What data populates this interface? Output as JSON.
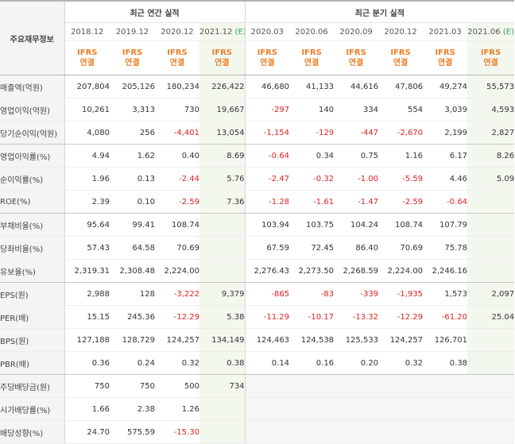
{
  "header": {
    "row_label": "주요재무정보",
    "annual_title": "최근 연간 실적",
    "quarter_title": "최근 분기 실적"
  },
  "periods": [
    {
      "label": "2018.12",
      "est": "",
      "ifrs_a": "IFRS",
      "ifrs_b": "연결"
    },
    {
      "label": "2019.12",
      "est": "",
      "ifrs_a": "IFRS",
      "ifrs_b": "연결"
    },
    {
      "label": "2020.12",
      "est": "",
      "ifrs_a": "IFRS",
      "ifrs_b": "연결"
    },
    {
      "label": "2021.12",
      "est": "(E)",
      "ifrs_a": "IFRS",
      "ifrs_b": "연결"
    },
    {
      "label": "2020.03",
      "est": "",
      "ifrs_a": "IFRS",
      "ifrs_b": "연결"
    },
    {
      "label": "2020.06",
      "est": "",
      "ifrs_a": "IFRS",
      "ifrs_b": "연결"
    },
    {
      "label": "2020.09",
      "est": "",
      "ifrs_a": "IFRS",
      "ifrs_b": "연결"
    },
    {
      "label": "2020.12",
      "est": "",
      "ifrs_a": "IFRS",
      "ifrs_b": "연결"
    },
    {
      "label": "2021.03",
      "est": "",
      "ifrs_a": "IFRS",
      "ifrs_b": "연결"
    },
    {
      "label": "2021.06",
      "est": "(E)",
      "ifrs_a": "IFRS",
      "ifrs_b": "연결"
    }
  ],
  "rows": [
    {
      "label": "매출액(억원)",
      "values": [
        "207,804",
        "205,126",
        "180,234",
        "226,422",
        "46,680",
        "41,133",
        "44,616",
        "47,806",
        "49,274",
        "55,573"
      ]
    },
    {
      "label": "영업이익(억원)",
      "values": [
        "10,261",
        "3,313",
        "730",
        "19,667",
        "-297",
        "140",
        "334",
        "554",
        "3,039",
        "4,593"
      ]
    },
    {
      "label": "당기순이익(억원)",
      "values": [
        "4,080",
        "256",
        "-4,401",
        "13,054",
        "-1,154",
        "-129",
        "-447",
        "-2,670",
        "2,199",
        "2,827"
      ]
    },
    {
      "label": "영업이익률(%)",
      "values": [
        "4.94",
        "1.62",
        "0.40",
        "8.69",
        "-0.64",
        "0.34",
        "0.75",
        "1.16",
        "6.17",
        "8.26"
      ]
    },
    {
      "label": "순이익률(%)",
      "values": [
        "1.96",
        "0.13",
        "-2.44",
        "5.76",
        "-2.47",
        "-0.32",
        "-1.00",
        "-5.59",
        "4.46",
        "5.09"
      ]
    },
    {
      "label": "ROE(%)",
      "values": [
        "2.39",
        "0.10",
        "-2.59",
        "7.36",
        "-1.28",
        "-1.61",
        "-1.47",
        "-2.59",
        "-0.64",
        ""
      ]
    },
    {
      "label": "부채비율(%)",
      "values": [
        "95.64",
        "99.41",
        "108.74",
        "",
        "103.94",
        "103.75",
        "104.24",
        "108.74",
        "107.79",
        ""
      ]
    },
    {
      "label": "당좌비율(%)",
      "values": [
        "57.43",
        "64.58",
        "70.69",
        "",
        "67.59",
        "72.45",
        "86.40",
        "70.69",
        "75.78",
        ""
      ]
    },
    {
      "label": "유보율(%)",
      "values": [
        "2,319.31",
        "2,308.48",
        "2,224.00",
        "",
        "2,276.43",
        "2,273.50",
        "2,268.59",
        "2,224.00",
        "2,246.16",
        ""
      ]
    },
    {
      "label": "EPS(원)",
      "values": [
        "2,988",
        "128",
        "-3,222",
        "9,379",
        "-865",
        "-83",
        "-339",
        "-1,935",
        "1,573",
        "2,097"
      ]
    },
    {
      "label": "PER(배)",
      "values": [
        "15.15",
        "245.36",
        "-12.29",
        "5.38",
        "-11.29",
        "-10.17",
        "-13.32",
        "-12.29",
        "-61.20",
        "25.04"
      ]
    },
    {
      "label": "BPS(원)",
      "values": [
        "127,188",
        "128,729",
        "124,257",
        "134,149",
        "124,463",
        "124,538",
        "125,533",
        "124,257",
        "126,701",
        ""
      ]
    },
    {
      "label": "PBR(배)",
      "values": [
        "0.36",
        "0.24",
        "0.32",
        "0.38",
        "0.14",
        "0.16",
        "0.20",
        "0.32",
        "0.38",
        ""
      ]
    },
    {
      "label": "주당배당금(원)",
      "values": [
        "750",
        "750",
        "500",
        "734",
        "",
        "",
        "",
        "",
        "",
        ""
      ]
    },
    {
      "label": "시가배당률(%)",
      "values": [
        "1.66",
        "2.38",
        "1.26",
        "",
        "",
        "",
        "",
        "",
        "",
        ""
      ]
    },
    {
      "label": "배당성향(%)",
      "values": [
        "24.70",
        "575.59",
        "-15.30",
        "",
        "",
        "",
        "",
        "",
        "",
        ""
      ]
    }
  ],
  "colors": {
    "negative": "#e01f1f",
    "ifrs": "#f07e26",
    "estimate_bg": "#f3f8ef",
    "estimate_mark": "#37a55a"
  }
}
